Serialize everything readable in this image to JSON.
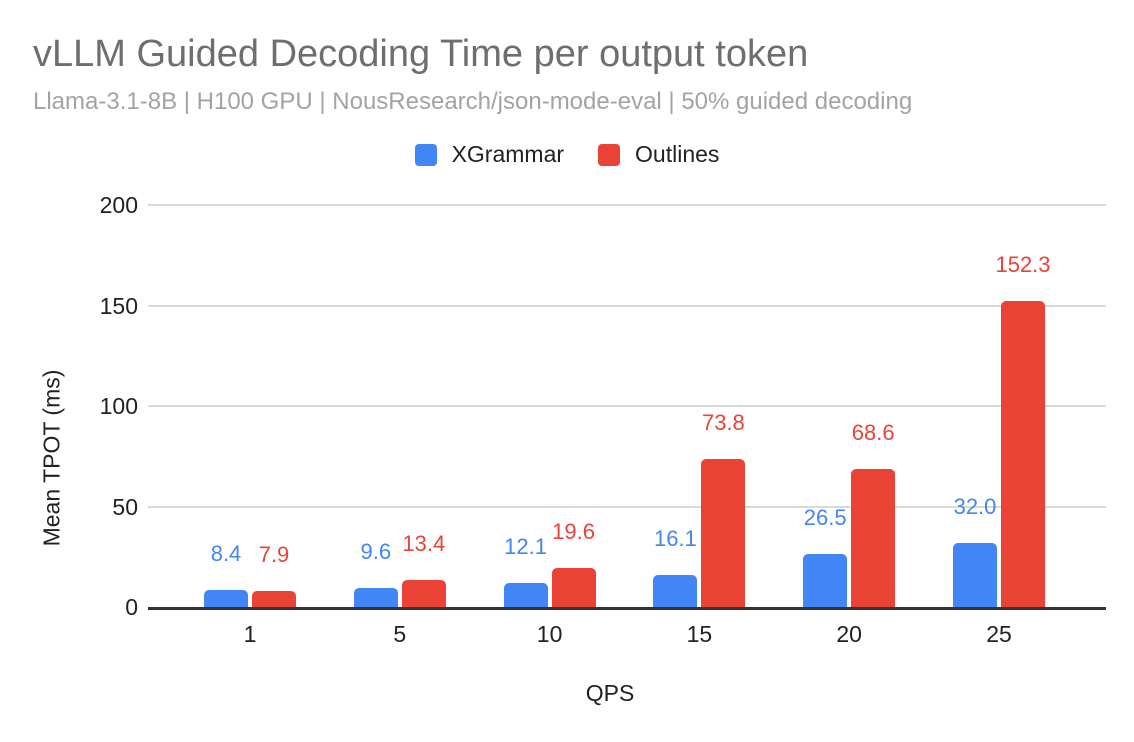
{
  "title": "vLLM Guided Decoding Time per output token",
  "subtitle": "Llama-3.1-8B | H100 GPU | NousResearch/json-mode-eval | 50% guided decoding",
  "colors": {
    "xgrammar_blue": "#4285F4",
    "outlines_red": "#EA4335",
    "title_text": "#6E6E6E",
    "subtitle_text": "#A3A3A3",
    "axis_text": "#212121",
    "gridline": "#D9D9D9",
    "axis_line": "#333333",
    "background": "#FFFFFF"
  },
  "legend": {
    "position": "top-center",
    "items": [
      {
        "label": "XGrammar",
        "color": "#4285F4"
      },
      {
        "label": "Outlines",
        "color": "#EA4335"
      }
    ]
  },
  "chart_data": {
    "type": "bar",
    "title": "vLLM Guided Decoding Time per output token",
    "subtitle": "Llama-3.1-8B | H100 GPU | NousResearch/json-mode-eval | 50% guided decoding",
    "categories": [
      "1",
      "5",
      "10",
      "15",
      "20",
      "25"
    ],
    "series": [
      {
        "name": "XGrammar",
        "color": "#4285F4",
        "values": [
          8.4,
          9.6,
          12.1,
          16.1,
          26.5,
          32.0
        ],
        "value_labels": [
          "8.4",
          "9.6",
          "12.1",
          "16.1",
          "26.5",
          "32.0"
        ]
      },
      {
        "name": "Outlines",
        "color": "#EA4335",
        "values": [
          7.9,
          13.4,
          19.6,
          73.8,
          68.6,
          152.3
        ],
        "value_labels": [
          "7.9",
          "13.4",
          "19.6",
          "73.8",
          "68.6",
          "152.3"
        ]
      }
    ],
    "xlabel": "QPS",
    "ylabel": "Mean TPOT (ms)",
    "ylim": [
      0,
      200
    ],
    "yticks": [
      0,
      50,
      100,
      150,
      200
    ],
    "grid": true,
    "data_labels": true,
    "legend_position": "top"
  }
}
